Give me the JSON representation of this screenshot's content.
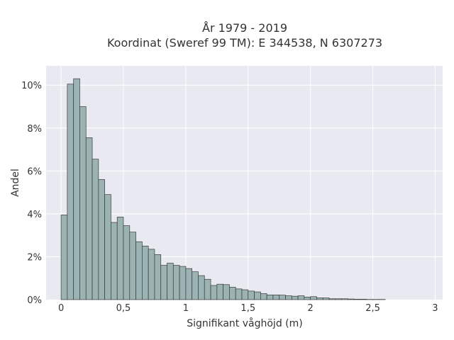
{
  "chart_data": {
    "type": "bar",
    "title": [
      "År 1979 - 2019",
      "Koordinat (Sweref 99 TM): E 344538, N 6307273"
    ],
    "xlabel": "Signifikant våghöjd (m)",
    "ylabel": "Andel",
    "bin_width": 0.05,
    "x_start": 0.0,
    "values": [
      3.95,
      10.05,
      10.3,
      9.0,
      7.55,
      6.55,
      5.6,
      4.9,
      3.6,
      3.85,
      3.45,
      3.15,
      2.7,
      2.5,
      2.35,
      2.1,
      1.6,
      1.7,
      1.6,
      1.55,
      1.45,
      1.3,
      1.12,
      0.95,
      0.66,
      0.72,
      0.7,
      0.58,
      0.5,
      0.46,
      0.4,
      0.36,
      0.28,
      0.22,
      0.22,
      0.21,
      0.18,
      0.16,
      0.18,
      0.12,
      0.14,
      0.08,
      0.08,
      0.04,
      0.04,
      0.04,
      0.03,
      0.02,
      0.02,
      0.01,
      0.01,
      0.01
    ],
    "xlim": [
      -0.12,
      3.06
    ],
    "ylim": [
      0,
      10.9
    ],
    "xticks": [
      {
        "value": 0,
        "label": "0"
      },
      {
        "value": 0.5,
        "label": "0,5"
      },
      {
        "value": 1,
        "label": "1"
      },
      {
        "value": 1.5,
        "label": "1,5"
      },
      {
        "value": 2,
        "label": "2"
      },
      {
        "value": 2.5,
        "label": "2,5"
      },
      {
        "value": 3,
        "label": "3"
      }
    ],
    "yticks": [
      {
        "value": 0,
        "label": "0%"
      },
      {
        "value": 2,
        "label": "2%"
      },
      {
        "value": 4,
        "label": "4%"
      },
      {
        "value": 6,
        "label": "6%"
      },
      {
        "value": 8,
        "label": "8%"
      },
      {
        "value": 10,
        "label": "10%"
      }
    ],
    "grid": true,
    "colors": {
      "plot_background": "#e9e9f2",
      "bar_fill": "#9bb3b2",
      "bar_stroke": "#3a3a3a",
      "grid": "#ffffff",
      "text": "#333333"
    }
  }
}
